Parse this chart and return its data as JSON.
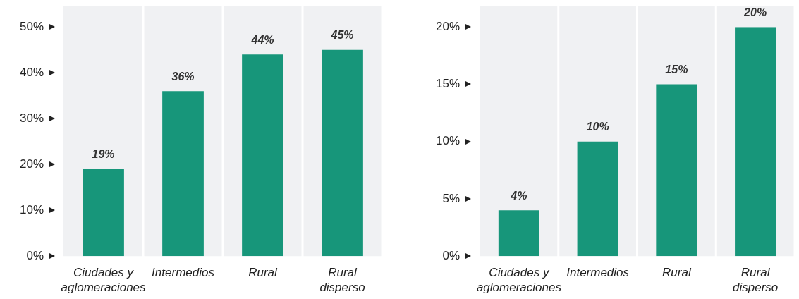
{
  "chart_data": [
    {
      "type": "bar",
      "categories": [
        "Ciudades y aglomeraciones",
        "Intermedios",
        "Rural",
        "Rural disperso"
      ],
      "values": [
        19,
        36,
        44,
        45
      ],
      "value_labels": [
        "19%",
        "36%",
        "44%",
        "45%"
      ],
      "color": "#17967a",
      "ylim": [
        0,
        50
      ],
      "yticks": [
        {
          "value": 0,
          "label": "0%"
        },
        {
          "value": 10,
          "label": "10%"
        },
        {
          "value": 20,
          "label": "20%"
        },
        {
          "value": 30,
          "label": "30%"
        },
        {
          "value": 40,
          "label": "40%"
        },
        {
          "value": 50,
          "label": "50%"
        }
      ]
    },
    {
      "type": "bar",
      "categories": [
        "Ciudades y aglomeraciones",
        "Intermedios",
        "Rural",
        "Rural disperso"
      ],
      "values": [
        4,
        10,
        15,
        20
      ],
      "value_labels": [
        "4%",
        "10%",
        "15%",
        "20%"
      ],
      "color": "#17967a",
      "ylim": [
        0,
        20
      ],
      "yticks": [
        {
          "value": 0,
          "label": "0%"
        },
        {
          "value": 5,
          "label": "5%"
        },
        {
          "value": 10,
          "label": "10%"
        },
        {
          "value": 15,
          "label": "15%"
        },
        {
          "value": 20,
          "label": "20%"
        }
      ]
    }
  ]
}
